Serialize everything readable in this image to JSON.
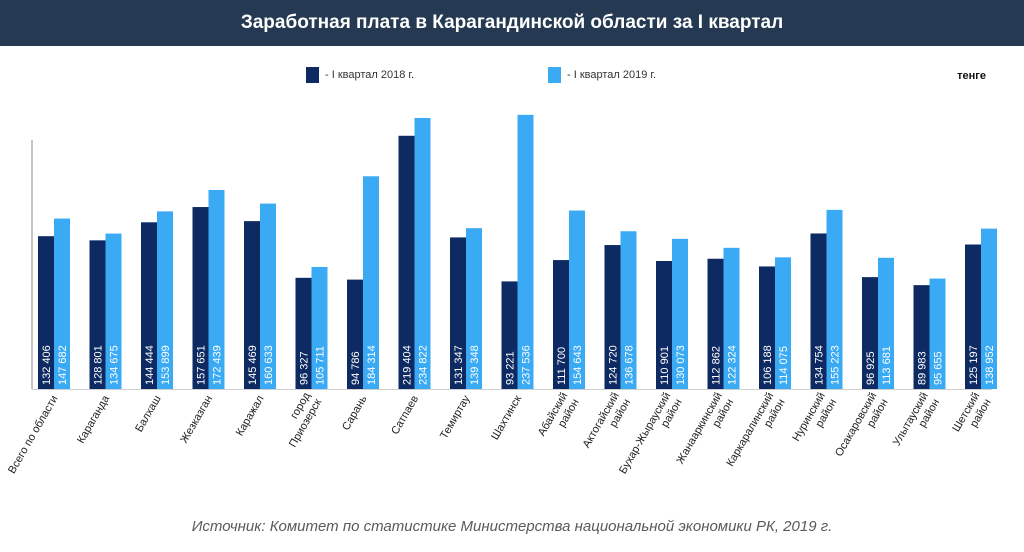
{
  "header": {
    "title": "Заработная плата в Карагандинской области за I квартал"
  },
  "unit": "тенге",
  "source": "Источник: Комитет по статистике Министерства национальной экономики РК, 2019 г.",
  "colors": {
    "series2018": "#0e2a62",
    "series2019": "#3aaaf5",
    "header_bg": "#253a52"
  },
  "chart_data": {
    "type": "bar",
    "title": "Заработная плата в Карагандинской области за I квартал",
    "ylabel": "тенге",
    "ylim": [
      0,
      240000
    ],
    "grid": false,
    "legend": "top",
    "categories": [
      [
        "Всего по области"
      ],
      [
        "Караганда"
      ],
      [
        "Балхаш"
      ],
      [
        "Жезказган"
      ],
      [
        "Каражал"
      ],
      [
        "город",
        "Приозерск"
      ],
      [
        "Сарань"
      ],
      [
        "Сатпаев"
      ],
      [
        "Темиртау"
      ],
      [
        "Шахтинск"
      ],
      [
        "Абайский",
        "район"
      ],
      [
        "Актогайский",
        "район"
      ],
      [
        "Бухар-Жырауский",
        "район"
      ],
      [
        "Жанааркинский",
        "район"
      ],
      [
        "Каркаралинский",
        "район"
      ],
      [
        "Нуринский",
        "район"
      ],
      [
        "Осакаровский",
        "район"
      ],
      [
        "Улытауский",
        "район"
      ],
      [
        "Шетский",
        "район"
      ]
    ],
    "series": [
      {
        "name": "- I квартал 2018 г.",
        "values": [
          132406,
          128801,
          144444,
          157651,
          145469,
          96327,
          94786,
          219404,
          131347,
          93221,
          111700,
          124720,
          110901,
          112862,
          106188,
          134754,
          96925,
          89983,
          125197
        ],
        "labels": [
          "132 406",
          "128 801",
          "144 444",
          "157 651",
          "145 469",
          "96 327",
          "94 786",
          "219 404",
          "131 347",
          "93 221",
          "111 700",
          "124 720",
          "110 901",
          "112 862",
          "106 188",
          "134 754",
          "96 925",
          "89 983",
          "125 197"
        ]
      },
      {
        "name": "- I квартал 2019 г.",
        "values": [
          147682,
          134675,
          153899,
          172439,
          160633,
          105711,
          184314,
          234822,
          139348,
          237536,
          154643,
          136678,
          130073,
          122324,
          114075,
          155223,
          113681,
          95655,
          138952
        ],
        "labels": [
          "147 682",
          "134 675",
          "153 899",
          "172 439",
          "160 633",
          "105 711",
          "184 314",
          "234 822",
          "139 348",
          "237 536",
          "154 643",
          "136 678",
          "130 073",
          "122 324",
          "114 075",
          "155 223",
          "113 681",
          "95 655",
          "138 952"
        ]
      }
    ]
  }
}
